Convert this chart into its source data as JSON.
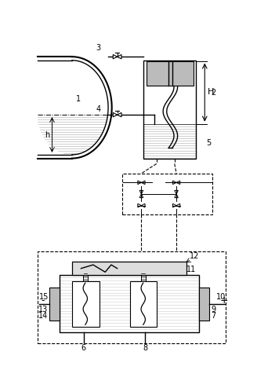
{
  "fig_width": 3.28,
  "fig_height": 4.99,
  "dpi": 100,
  "bg_color": "#ffffff",
  "line_color": "#000000"
}
